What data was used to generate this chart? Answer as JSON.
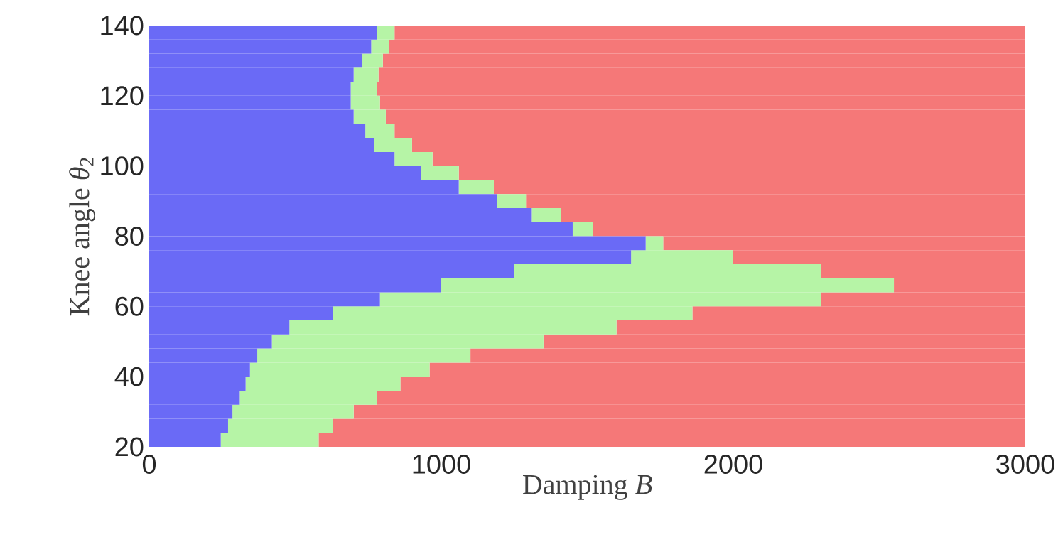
{
  "chart_data": {
    "type": "bar",
    "orientation": "horizontal",
    "stacked": true,
    "xlabel": "Damping *B*",
    "ylabel": "Knee angle *θ*$_{2}$",
    "x": [
      22,
      26,
      30,
      34,
      38,
      42,
      46,
      50,
      54,
      58,
      62,
      66,
      70,
      74,
      78,
      82,
      86,
      90,
      94,
      98,
      102,
      106,
      110,
      114,
      118,
      122,
      126,
      130,
      134,
      138
    ],
    "series": [
      {
        "color": "#6a6af6",
        "values": [
          245,
          270,
          285,
          310,
          330,
          345,
          370,
          420,
          480,
          630,
          790,
          1000,
          1250,
          1650,
          1700,
          1450,
          1310,
          1190,
          1060,
          930,
          840,
          770,
          740,
          700,
          690,
          690,
          700,
          730,
          760,
          780
        ]
      },
      {
        "color": "#b6f4a6",
        "values": [
          335,
          360,
          415,
          470,
          530,
          615,
          730,
          930,
          1120,
          1230,
          1510,
          1550,
          1050,
          350,
          60,
          70,
          100,
          100,
          120,
          130,
          130,
          130,
          100,
          110,
          100,
          90,
          85,
          70,
          60,
          60
        ]
      },
      {
        "color": "#f57878",
        "values": [
          2420,
          2370,
          2300,
          2220,
          2140,
          2040,
          1900,
          1650,
          1400,
          1140,
          700,
          450,
          700,
          1000,
          1240,
          1480,
          1590,
          1710,
          1820,
          1940,
          2030,
          2100,
          2160,
          2190,
          2210,
          2220,
          2215,
          2200,
          2180,
          2160
        ]
      }
    ],
    "xlim": [
      0,
      3000
    ],
    "xticks": [
      0,
      1000,
      2000,
      3000
    ],
    "ylim": [
      20,
      140
    ],
    "yticks": [
      20,
      40,
      60,
      80,
      100,
      120,
      140
    ]
  }
}
